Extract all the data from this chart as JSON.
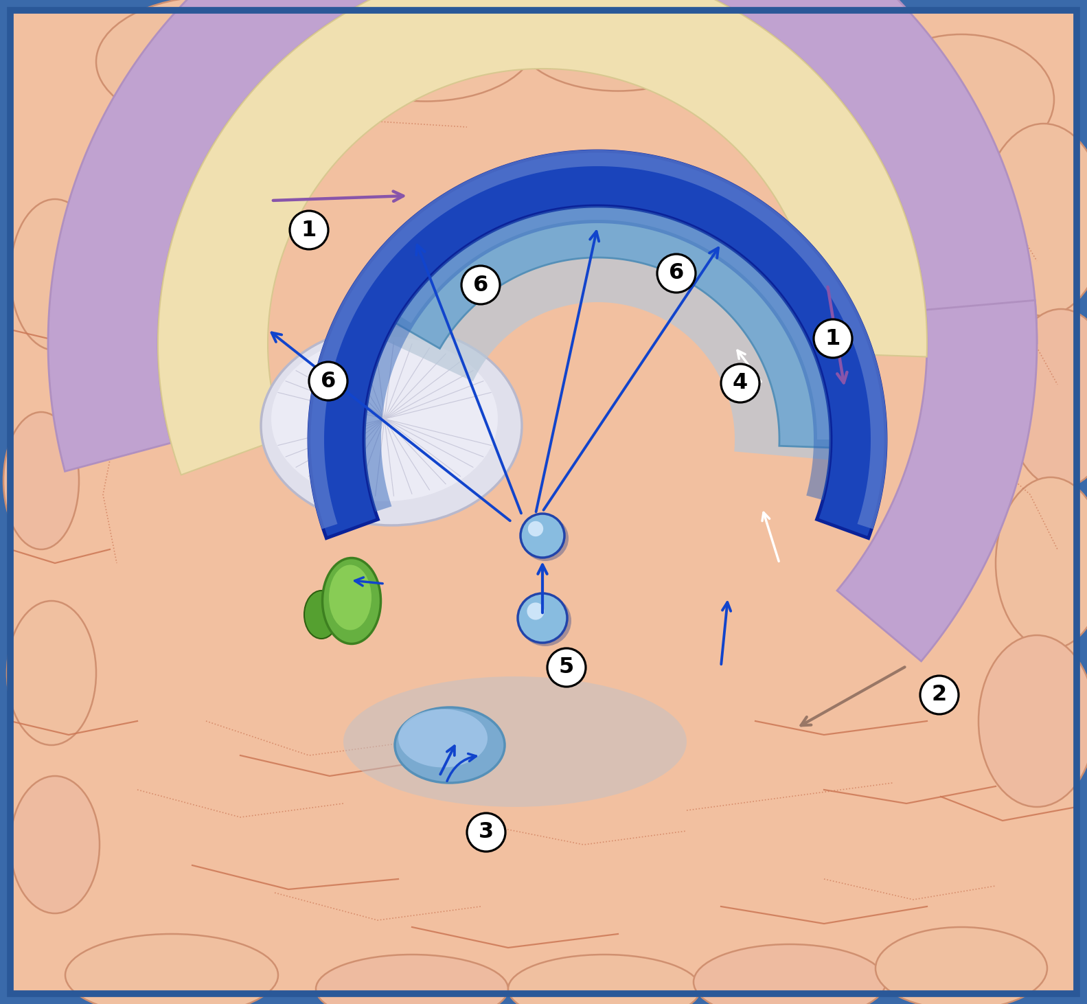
{
  "background_color": "#3a6aaa",
  "brain_skin": "#f2c0a0",
  "brain_skin_dark": "#e8aa88",
  "cingulate_purple_outer": "#c0a0d0",
  "cingulate_purple_inner": "#d0b8e0",
  "white_matter_cream": "#f0e0b0",
  "thalamus_white": "#e8e8f0",
  "thalamus_gray": "#d0d0dc",
  "fornix_dark": "#1a44bb",
  "fornix_mid": "#2255cc",
  "fornix_light": "#4477dd",
  "fornix_highlight": "#88aaee",
  "hippocampus_mid": "#6699cc",
  "hippocampus_light": "#99bbdd",
  "hippocampus_shadow": "#aabbcc",
  "mammillary_green": "#66b040",
  "mammillary_dark": "#449020",
  "node_blue": "#88bce0",
  "node_mid": "#5599cc",
  "node_border": "#1144bb",
  "purple_arrow": "#8855aa",
  "blue_arrow_dark": "#1144cc",
  "blue_arrow_light": "#5588dd",
  "gray_arrow": "#997766",
  "border_blue": "#2a5898",
  "figsize": [
    15.83,
    14.62
  ],
  "dpi": 100
}
